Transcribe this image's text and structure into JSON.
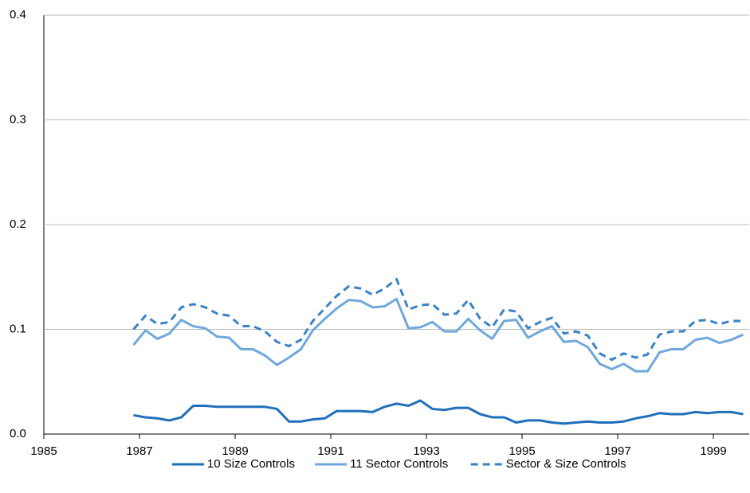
{
  "chart_data": {
    "type": "line",
    "x": [
      1986.875,
      1987.125,
      1987.375,
      1987.625,
      1987.875,
      1988.125,
      1988.375,
      1988.625,
      1988.875,
      1989.125,
      1989.375,
      1989.625,
      1989.875,
      1990.125,
      1990.375,
      1990.625,
      1990.875,
      1991.125,
      1991.375,
      1991.625,
      1991.875,
      1992.125,
      1992.375,
      1992.625,
      1992.875,
      1993.125,
      1993.375,
      1993.625,
      1993.875,
      1994.125,
      1994.375,
      1994.625,
      1994.875,
      1995.125,
      1995.375,
      1995.625,
      1995.875,
      1996.125,
      1996.375,
      1996.625,
      1996.875,
      1997.125,
      1997.375,
      1997.625,
      1997.875,
      1998.125,
      1998.375,
      1998.625,
      1998.875,
      1999.125,
      1999.375,
      1999.625
    ],
    "series": [
      {
        "name": "10 Size Controls",
        "color": "#1f6fba",
        "dashed": false,
        "values": [
          0.018,
          0.016,
          0.015,
          0.013,
          0.016,
          0.027,
          0.027,
          0.026,
          0.026,
          0.026,
          0.026,
          0.026,
          0.024,
          0.012,
          0.012,
          0.014,
          0.015,
          0.022,
          0.022,
          0.022,
          0.021,
          0.026,
          0.029,
          0.027,
          0.032,
          0.024,
          0.023,
          0.025,
          0.025,
          0.019,
          0.016,
          0.016,
          0.011,
          0.013,
          0.013,
          0.011,
          0.01,
          0.011,
          0.012,
          0.011,
          0.011,
          0.012,
          0.015,
          0.017,
          0.02,
          0.019,
          0.019,
          0.021,
          0.02,
          0.021,
          0.021,
          0.019
        ]
      },
      {
        "name": "11 Sector Controls",
        "color": "#6fa8dc",
        "dashed": false,
        "values": [
          0.085,
          0.099,
          0.091,
          0.096,
          0.109,
          0.103,
          0.101,
          0.093,
          0.092,
          0.081,
          0.081,
          0.075,
          0.066,
          0.073,
          0.081,
          0.099,
          0.11,
          0.12,
          0.128,
          0.127,
          0.121,
          0.122,
          0.129,
          0.101,
          0.102,
          0.107,
          0.098,
          0.098,
          0.11,
          0.099,
          0.091,
          0.108,
          0.109,
          0.092,
          0.098,
          0.103,
          0.088,
          0.089,
          0.083,
          0.067,
          0.062,
          0.067,
          0.06,
          0.06,
          0.078,
          0.081,
          0.081,
          0.09,
          0.092,
          0.087,
          0.09,
          0.095
        ]
      },
      {
        "name": "Sector & Size Controls",
        "color": "#3a82c8",
        "dashed": true,
        "values": [
          0.1,
          0.113,
          0.105,
          0.107,
          0.121,
          0.124,
          0.121,
          0.115,
          0.113,
          0.103,
          0.103,
          0.098,
          0.088,
          0.084,
          0.09,
          0.108,
          0.12,
          0.132,
          0.141,
          0.139,
          0.133,
          0.139,
          0.148,
          0.119,
          0.123,
          0.124,
          0.114,
          0.115,
          0.128,
          0.11,
          0.102,
          0.119,
          0.117,
          0.101,
          0.107,
          0.111,
          0.096,
          0.098,
          0.094,
          0.077,
          0.071,
          0.077,
          0.073,
          0.076,
          0.095,
          0.098,
          0.098,
          0.108,
          0.109,
          0.105,
          0.108,
          0.108
        ]
      }
    ],
    "xlim": [
      1985,
      1999.75
    ],
    "xticks": [
      1985,
      1987,
      1989,
      1991,
      1993,
      1995,
      1997,
      1999
    ],
    "ylim": [
      0,
      0.4
    ],
    "yticks": [
      {
        "value": 0,
        "label": "0.0"
      },
      0.1,
      0.2,
      0.3,
      0.4
    ],
    "grid": true,
    "legend": "bottom"
  }
}
